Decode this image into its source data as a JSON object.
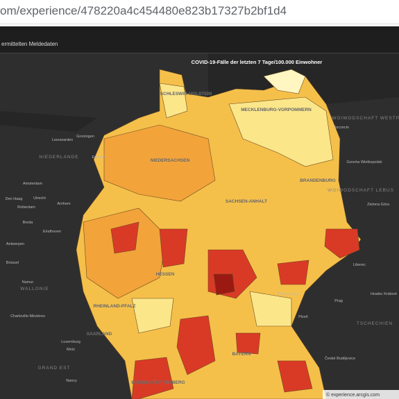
{
  "url": "om/experience/478220a4c454480e823b17327b2bf1d4",
  "header": {
    "title": "ermittelten Meldedaten"
  },
  "map": {
    "title": "COVID-19-Fälle der letzten 7 Tage/100.000 Einwohner",
    "states": [
      "SCHLESWIG-HOLSTEIN",
      "MECKLENBURG-VORPOMMERN",
      "NIEDERSACHSEN",
      "SACHSEN-ANHALT",
      "BRANDENBURG",
      "HESSEN",
      "RHEINLAND-PFALZ",
      "SAARLAND",
      "BAYERN",
      "BADEN-WÜRTTEMBERG"
    ],
    "regions": [
      "NIEDERLANDE",
      "WALLONIE",
      "GRAND EST",
      "WOIWODSCHAFT WESTPOMMERN",
      "WOIWODSCHAFT LEBUS",
      "TSCHECHIEN"
    ],
    "places": [
      "Leeuwarden",
      "Groningen",
      "Emmen",
      "Amsterdam",
      "Den Haag",
      "Utrecht",
      "Rotterdam",
      "Arnhem",
      "Breda",
      "Eindhoven",
      "Antwerpen",
      "Brüssel",
      "Namur",
      "Charleville-Mézières",
      "Luxemburg",
      "Metz",
      "Nancy",
      "Szczecin",
      "Gorzów Wielkopolski",
      "Zielona Góra",
      "Liberec",
      "Karlovy Vary",
      "Prag",
      "Plzeň",
      "Hradec Králové",
      "České Budějovice"
    ],
    "attribution": "© experience.arcgis.com"
  }
}
